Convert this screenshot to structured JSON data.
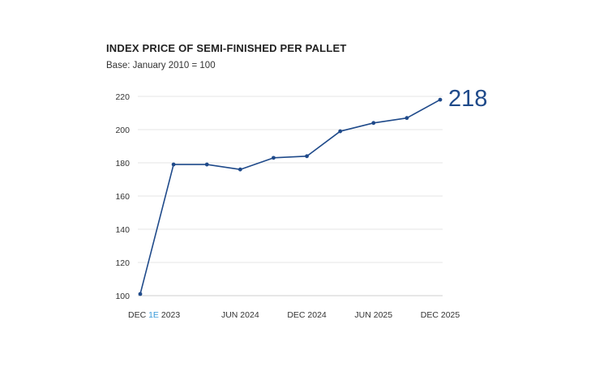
{
  "chart_data": {
    "type": "line",
    "title": "INDEX PRICE OF SEMI-FINISHED PER PALLET",
    "subtitle": "Base: January 2010 = 100",
    "xlabel": "",
    "ylabel": "",
    "ylim": [
      100,
      220
    ],
    "yticks": [
      100,
      120,
      140,
      160,
      180,
      200,
      220
    ],
    "grid": true,
    "x_tick_labels": [
      {
        "text": "DEC ",
        "accent": "1E",
        "rest": " 2023",
        "index": 0
      },
      {
        "text": "JUN 2024",
        "accent": "",
        "rest": "",
        "index": 3
      },
      {
        "text": "DEC 2024",
        "accent": "",
        "rest": "",
        "index": 5
      },
      {
        "text": "JUN 2025",
        "accent": "",
        "rest": "",
        "index": 7
      },
      {
        "text": "DEC 2025",
        "accent": "",
        "rest": "",
        "index": 9
      }
    ],
    "series": [
      {
        "values": [
          101,
          179,
          179,
          176,
          183,
          184,
          199,
          204,
          207,
          218
        ]
      }
    ],
    "end_label": "218",
    "colors": {
      "line": "#1f4a8a",
      "grid": "#e6e6e6",
      "accent": "#3a9ad9"
    }
  }
}
